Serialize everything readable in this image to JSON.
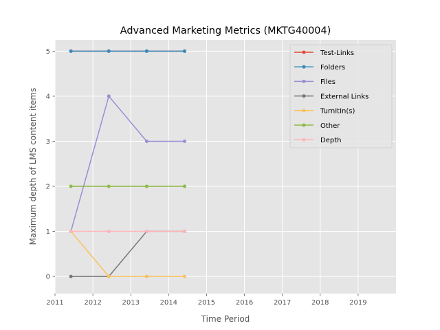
{
  "chart_data": {
    "type": "line",
    "title": "Advanced Marketing Metrics (MKTG40004)",
    "xlabel": "Time Period",
    "ylabel": "Maximum depth of LMS content items",
    "xlim": [
      2011,
      2020
    ],
    "ylim": [
      -0.38,
      5.25
    ],
    "x_ticks": [
      "2011",
      "2012",
      "2013",
      "2014",
      "2015",
      "2016",
      "2017",
      "2018",
      "2019"
    ],
    "y_ticks": [
      "0",
      "1",
      "2",
      "3",
      "4",
      "5"
    ],
    "grid": true,
    "legend_position": "top-right",
    "x": [
      2011.42,
      2012.42,
      2013.42,
      2014.42
    ],
    "series": [
      {
        "name": "Test-Links",
        "color": "#E24A33",
        "values": [
          5,
          5,
          5,
          5
        ]
      },
      {
        "name": "Folders",
        "color": "#348ABD",
        "values": [
          5,
          5,
          5,
          5
        ]
      },
      {
        "name": "Files",
        "color": "#988ED5",
        "values": [
          1,
          4,
          3,
          3
        ]
      },
      {
        "name": "External Links",
        "color": "#777777",
        "values": [
          0,
          0,
          1,
          1
        ]
      },
      {
        "name": "TurnItIn(s)",
        "color": "#FBC15E",
        "values": [
          1,
          0,
          0,
          0
        ]
      },
      {
        "name": "Other",
        "color": "#8EBA42",
        "values": [
          2,
          2,
          2,
          2
        ]
      },
      {
        "name": "Depth",
        "color": "#FFB5B8",
        "values": [
          1,
          1,
          1,
          1
        ]
      }
    ]
  }
}
